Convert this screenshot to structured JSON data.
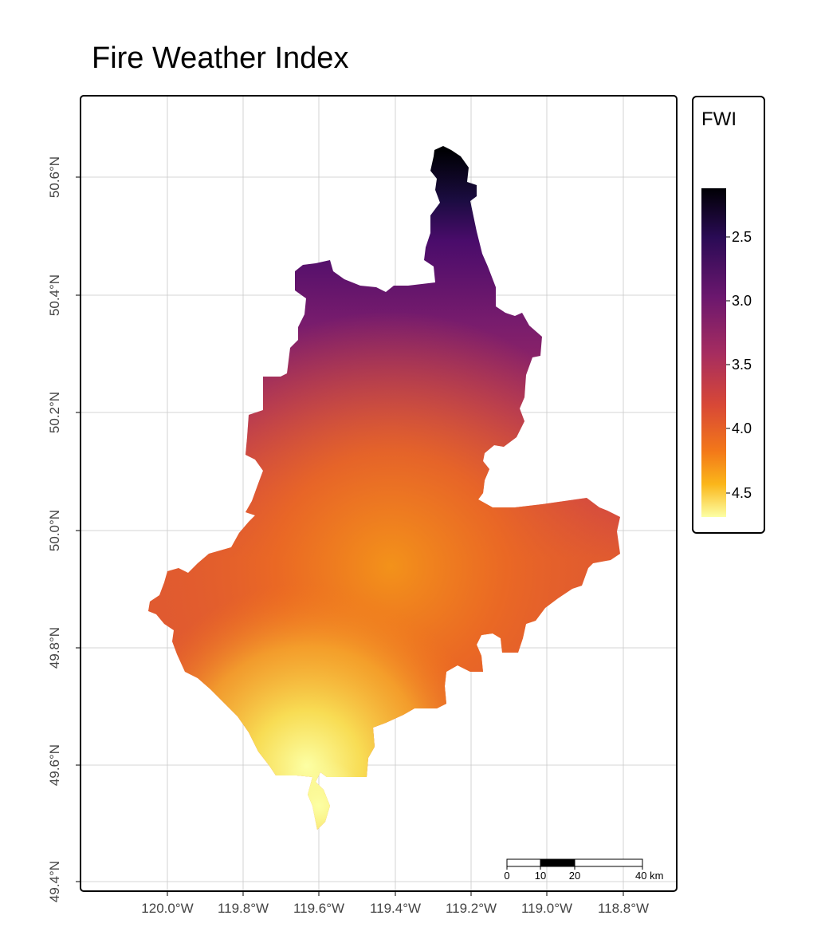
{
  "title": "Fire Weather Index",
  "map": {
    "longitude_ticks": [
      "120.0°W",
      "119.8°W",
      "119.6°W",
      "119.4°W",
      "119.2°W",
      "119.0°W",
      "118.8°W"
    ],
    "latitude_ticks": [
      "50.6°N",
      "50.4°N",
      "50.2°N",
      "50.0°N",
      "49.8°N",
      "49.6°N",
      "49.4°N"
    ]
  },
  "legend": {
    "title": "FWI",
    "labels": [
      "2.5",
      "3.0",
      "3.5",
      "4.0",
      "4.5"
    ],
    "colormap": "inferno (reversed)",
    "colors": [
      "#000004",
      "#2a0b55",
      "#6b176e",
      "#a52c60",
      "#d84836",
      "#f37819",
      "#fbb61a",
      "#fcffa4"
    ]
  },
  "scale_bar": {
    "labels": [
      "0",
      "10",
      "20",
      "40 km"
    ]
  }
}
